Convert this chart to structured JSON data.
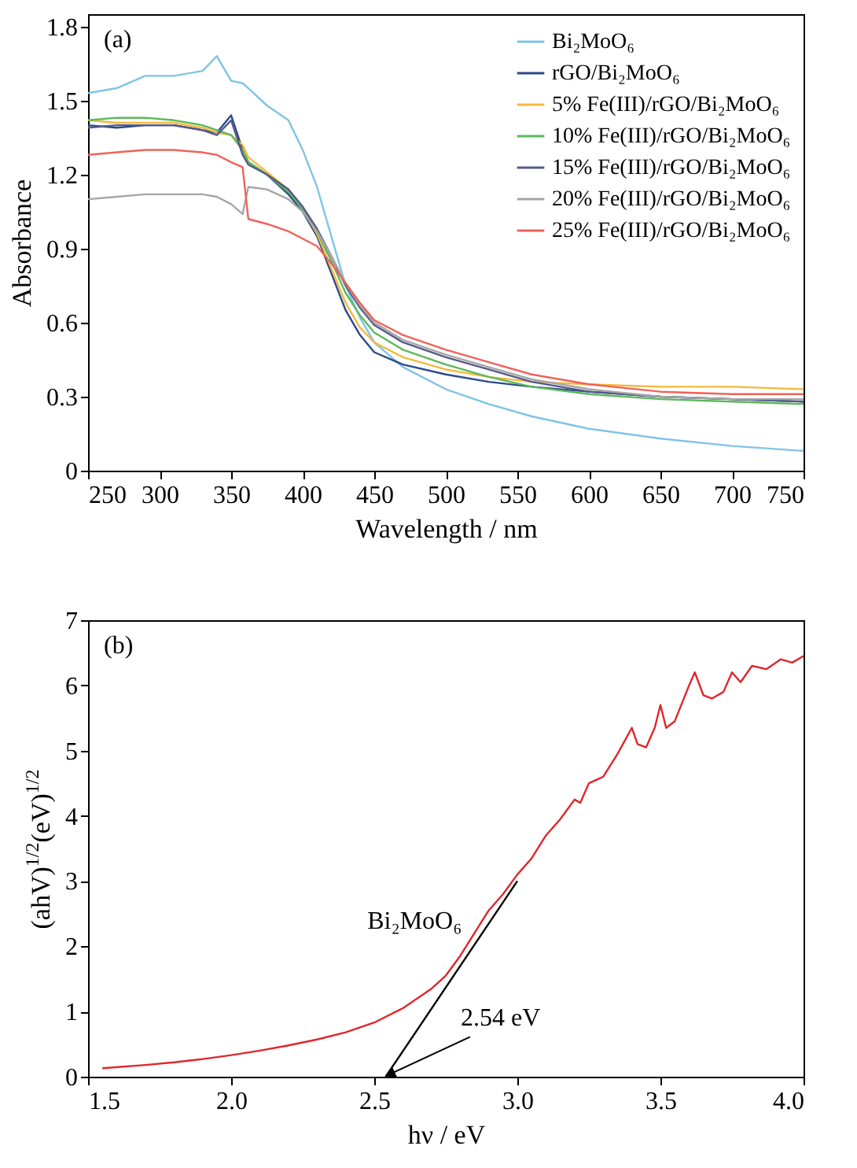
{
  "chart_data": [
    {
      "type": "line",
      "xlabel": "Wavelength / nm",
      "ylabel": "Absorbance",
      "annotations": [
        "(a)"
      ],
      "x": [
        250,
        270,
        290,
        310,
        330,
        340,
        350,
        358,
        362,
        375,
        390,
        400,
        410,
        420,
        430,
        440,
        450,
        470,
        500,
        530,
        560,
        600,
        650,
        700,
        750
      ],
      "series": [
        {
          "name": "Bi₂MoO₆",
          "color": "#7fc4e6",
          "values": [
            1.53,
            1.55,
            1.6,
            1.6,
            1.62,
            1.68,
            1.58,
            1.57,
            1.55,
            1.48,
            1.42,
            1.3,
            1.15,
            0.95,
            0.75,
            0.62,
            0.52,
            0.42,
            0.33,
            0.27,
            0.22,
            0.17,
            0.13,
            0.1,
            0.08
          ]
        },
        {
          "name": "rGO/Bi₂MoO₆",
          "color": "#2b4a8c",
          "values": [
            1.4,
            1.39,
            1.4,
            1.4,
            1.38,
            1.37,
            1.44,
            1.3,
            1.25,
            1.2,
            1.12,
            1.05,
            0.95,
            0.8,
            0.65,
            0.55,
            0.48,
            0.43,
            0.39,
            0.36,
            0.34,
            0.32,
            0.3,
            0.29,
            0.28
          ]
        },
        {
          "name": "5% Fe(III)/rGO/Bi₂MoO₆",
          "color": "#f5b93a",
          "values": [
            1.42,
            1.41,
            1.41,
            1.41,
            1.39,
            1.37,
            1.36,
            1.32,
            1.27,
            1.21,
            1.14,
            1.06,
            0.96,
            0.82,
            0.68,
            0.58,
            0.52,
            0.46,
            0.41,
            0.38,
            0.36,
            0.35,
            0.34,
            0.34,
            0.33
          ]
        },
        {
          "name": "10% Fe(III)/rGO/Bi₂MoO₆",
          "color": "#5cb85c",
          "values": [
            1.42,
            1.43,
            1.43,
            1.42,
            1.4,
            1.38,
            1.36,
            1.3,
            1.25,
            1.2,
            1.13,
            1.06,
            0.97,
            0.85,
            0.72,
            0.63,
            0.56,
            0.49,
            0.43,
            0.38,
            0.34,
            0.31,
            0.29,
            0.28,
            0.27
          ]
        },
        {
          "name": "15% Fe(III)/rGO/Bi₂MoO₆",
          "color": "#555a8a",
          "values": [
            1.39,
            1.4,
            1.4,
            1.4,
            1.38,
            1.36,
            1.42,
            1.28,
            1.24,
            1.2,
            1.14,
            1.07,
            0.98,
            0.87,
            0.75,
            0.66,
            0.59,
            0.52,
            0.46,
            0.41,
            0.36,
            0.32,
            0.3,
            0.29,
            0.28
          ]
        },
        {
          "name": "20% Fe(III)/rGO/Bi₂MoO₆",
          "color": "#a6a6a6",
          "values": [
            1.1,
            1.11,
            1.12,
            1.12,
            1.12,
            1.11,
            1.08,
            1.04,
            1.15,
            1.14,
            1.1,
            1.05,
            0.97,
            0.87,
            0.76,
            0.67,
            0.6,
            0.53,
            0.47,
            0.42,
            0.37,
            0.33,
            0.3,
            0.29,
            0.29
          ]
        },
        {
          "name": "25% Fe(III)/rGO/Bi₂MoO₆",
          "color": "#f0625a",
          "values": [
            1.28,
            1.29,
            1.3,
            1.3,
            1.29,
            1.28,
            1.25,
            1.23,
            1.02,
            1.0,
            0.97,
            0.94,
            0.91,
            0.84,
            0.76,
            0.68,
            0.61,
            0.55,
            0.49,
            0.44,
            0.39,
            0.35,
            0.32,
            0.31,
            0.31
          ]
        }
      ],
      "xlim": [
        250,
        750
      ],
      "xticks": [
        250,
        300,
        350,
        400,
        450,
        500,
        550,
        600,
        650,
        700,
        750
      ],
      "ylim": [
        0,
        1.85
      ],
      "yticks": [
        0,
        0.3,
        0.6,
        0.9,
        1.2,
        1.5,
        1.8
      ],
      "legend": "top right"
    },
    {
      "type": "line",
      "xlabel": "hν / eV",
      "ylabel": "(ahV)$^{1/2}$(eV)$^{1/2}$",
      "annotations": [
        "(b)",
        {
          "text": "2.54 eV",
          "x": 2.56,
          "y": 0.05
        }
      ],
      "series": [
        {
          "name": "Bi₂MoO₆",
          "color": "#e0262b",
          "x": [
            1.55,
            1.7,
            1.8,
            1.9,
            2.0,
            2.1,
            2.2,
            2.3,
            2.4,
            2.5,
            2.6,
            2.7,
            2.75,
            2.8,
            2.85,
            2.9,
            2.95,
            3.0,
            3.05,
            3.1,
            3.15,
            3.2,
            3.22,
            3.25,
            3.3,
            3.35,
            3.4,
            3.42,
            3.45,
            3.48,
            3.5,
            3.52,
            3.55,
            3.6,
            3.62,
            3.65,
            3.68,
            3.72,
            3.75,
            3.78,
            3.82,
            3.87,
            3.92,
            3.96,
            4.0
          ],
          "values": [
            0.13,
            0.18,
            0.22,
            0.27,
            0.33,
            0.4,
            0.48,
            0.57,
            0.68,
            0.83,
            1.05,
            1.35,
            1.55,
            1.85,
            2.2,
            2.55,
            2.8,
            3.1,
            3.35,
            3.7,
            3.95,
            4.25,
            4.2,
            4.5,
            4.6,
            4.95,
            5.35,
            5.1,
            5.05,
            5.35,
            5.7,
            5.35,
            5.45,
            6.0,
            6.2,
            5.85,
            5.8,
            5.9,
            6.2,
            6.05,
            6.3,
            6.25,
            6.4,
            6.35,
            6.45
          ]
        },
        {
          "color": "#000000",
          "x": [
            2.54,
            3.0
          ],
          "values": [
            0,
            3.0
          ]
        }
      ],
      "xlim": [
        1.5,
        4.0
      ],
      "xticks": [
        1.5,
        {
          "value": 2,
          "label": "2.0"
        },
        2.5,
        {
          "value": 3,
          "label": "3.0"
        },
        3.5,
        {
          "value": 4,
          "label": "4.0"
        }
      ],
      "ylim": [
        0,
        7
      ],
      "yticks": [
        0,
        1,
        2,
        3,
        4,
        5,
        6,
        7
      ],
      "legend": false
    }
  ]
}
